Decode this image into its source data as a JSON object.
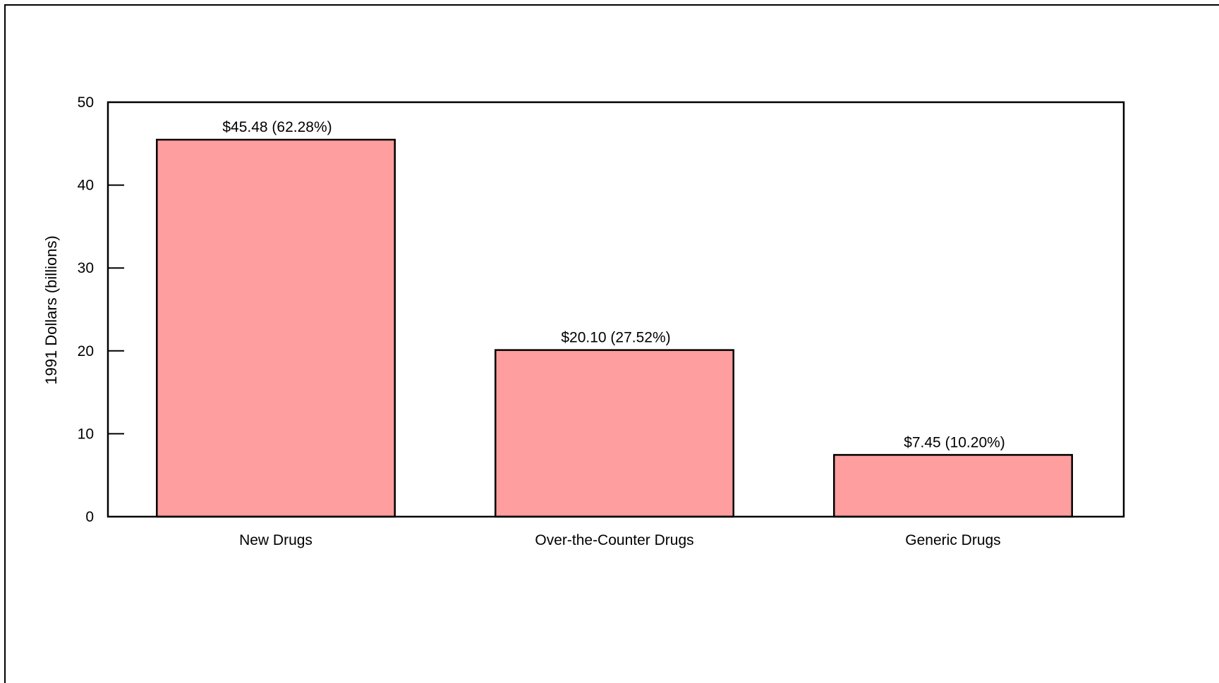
{
  "chart_data": {
    "type": "bar",
    "categories": [
      "New Drugs",
      "Over-the-Counter Drugs",
      "Generic Drugs"
    ],
    "values": [
      45.48,
      20.1,
      7.45
    ],
    "data_labels": [
      "$45.48 (62.28%)",
      "$20.10 (27.52%)",
      "$7.45 (10.20%)"
    ],
    "title": "",
    "xlabel": "",
    "ylabel": "1991 Dollars (billions)",
    "ylim": [
      0,
      50
    ],
    "yticks": [
      "0",
      "10",
      "20",
      "30",
      "40",
      "50"
    ],
    "grid": false,
    "bar_color": "#ff9e9e",
    "bar_edge_color": "#000000"
  }
}
